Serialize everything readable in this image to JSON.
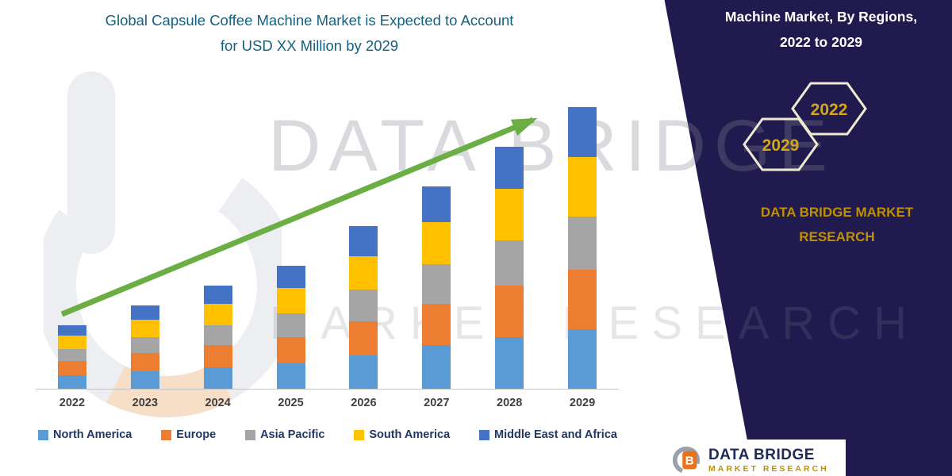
{
  "title": {
    "line1": "Global Capsule Coffee Machine Market is Expected to Account",
    "line2": "for USD XX Million by 2029"
  },
  "panel": {
    "heading_line1": "Machine Market,  By Regions,",
    "heading_line2": "2022 to 2029",
    "hexagons": [
      {
        "year": "2029"
      },
      {
        "year": "2022"
      }
    ],
    "brand_line1": "DATA BRIDGE MARKET",
    "brand_line2": "RESEARCH",
    "bg_color": "#211A4F",
    "gold_color": "#BF9000"
  },
  "watermark": {
    "line1": "DATA BRIDGE",
    "line2": "MARKET RESEARCH"
  },
  "footer_logo": {
    "name": "DATA BRIDGE",
    "sub": "MARKET RESEARCH"
  },
  "chart_data": {
    "type": "bar",
    "stacked": true,
    "title": "Global Capsule Coffee Machine Market is Expected to Account for USD XX Million by 2029",
    "xlabel": "",
    "ylabel": "",
    "units": "USD XX Million (relative index)",
    "legend_position": "bottom",
    "grid": false,
    "trend_arrow": true,
    "arrow_color": "#6AAE44",
    "categories": [
      "2022",
      "2023",
      "2024",
      "2025",
      "2026",
      "2027",
      "2028",
      "2029"
    ],
    "series": [
      {
        "name": "North America",
        "color": "#5B9BD5",
        "values": [
          3.5,
          4.5,
          5.5,
          6.5,
          8.5,
          11,
          13,
          15
        ]
      },
      {
        "name": "Europe",
        "color": "#ED7D31",
        "values": [
          3.5,
          4.5,
          5.5,
          6.5,
          8.5,
          10.5,
          13,
          15
        ]
      },
      {
        "name": "Asia Pacific",
        "color": "#A5A5A5",
        "values": [
          3,
          4,
          5,
          6,
          8,
          10,
          11.5,
          13.5
        ]
      },
      {
        "name": "South America",
        "color": "#FFC000",
        "values": [
          3.5,
          4.5,
          5.5,
          6.5,
          8.5,
          10.5,
          13,
          15
        ]
      },
      {
        "name": "Middle East and Africa",
        "color": "#4472C4",
        "values": [
          2.5,
          3.5,
          4.5,
          5.5,
          7.5,
          9,
          10.5,
          12.5
        ]
      }
    ],
    "totals": [
      16,
      21,
      26,
      31,
      41,
      51,
      61,
      71
    ]
  }
}
